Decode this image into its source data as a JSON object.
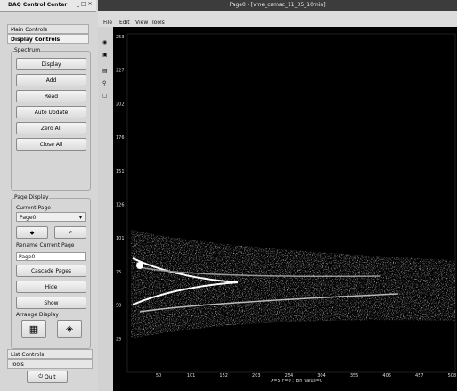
{
  "panel": {
    "title": "DAQ Control Center",
    "tabs": [
      "Main Controls",
      "Display Controls"
    ],
    "spectrum": {
      "title": "Spectrum",
      "buttons": [
        "Display",
        "Add",
        "Read",
        "Auto Update",
        "Zero All",
        "Close All"
      ]
    },
    "page_display": {
      "title": "Page Display",
      "current_label": "Current Page",
      "current_value": "Page0",
      "rename_label": "Rename Current Page",
      "rename_value": "Page0",
      "buttons": [
        "Cascade Pages",
        "Hide",
        "Show"
      ],
      "arrange_label": "Arrange Display"
    },
    "bottom_tabs": [
      "List Controls",
      "Tools"
    ],
    "quit": "Quit"
  },
  "window": {
    "title": "Page0 - [vme_camac_11_05_10min]",
    "menu": [
      "File",
      "Edit",
      "View",
      "Tools"
    ],
    "y_labels": [
      "253",
      "227",
      "202",
      "176",
      "151",
      "126",
      "101",
      "75",
      "50",
      "25"
    ],
    "x_labels": [
      "50",
      "101",
      "152",
      "203",
      "254",
      "304",
      "355",
      "406",
      "457",
      "508"
    ],
    "status": "X=5 Y=0 : Bin Value=0"
  }
}
